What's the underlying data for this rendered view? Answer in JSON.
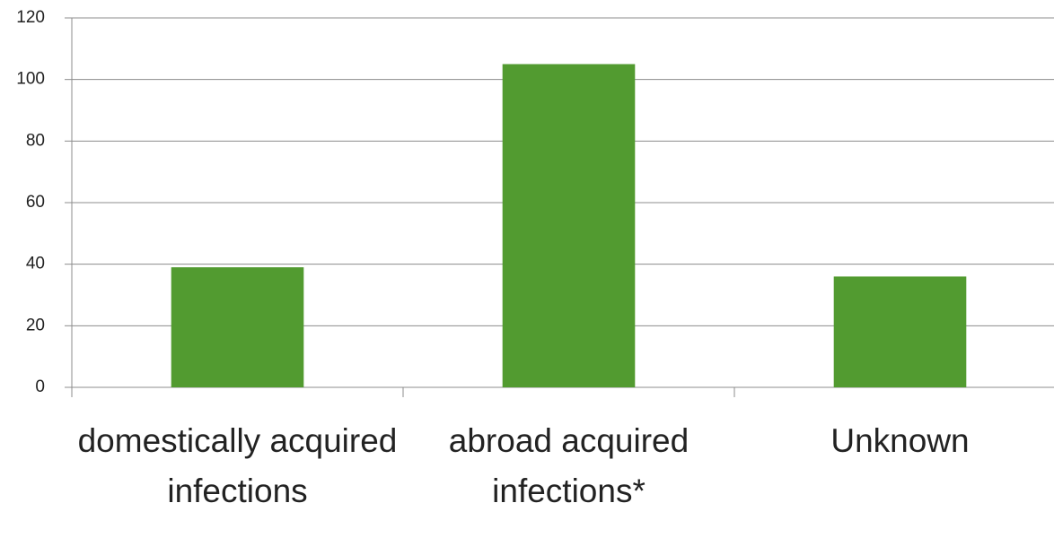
{
  "chart_data": {
    "type": "bar",
    "categories": [
      "domestically acquired infections",
      "abroad acquired infections*",
      "Unknown"
    ],
    "values": [
      39,
      105,
      36
    ],
    "color": "#529b30",
    "ylim": [
      0,
      120
    ],
    "yticks": [
      0,
      20,
      40,
      60,
      80,
      100,
      120
    ],
    "grid": true
  }
}
